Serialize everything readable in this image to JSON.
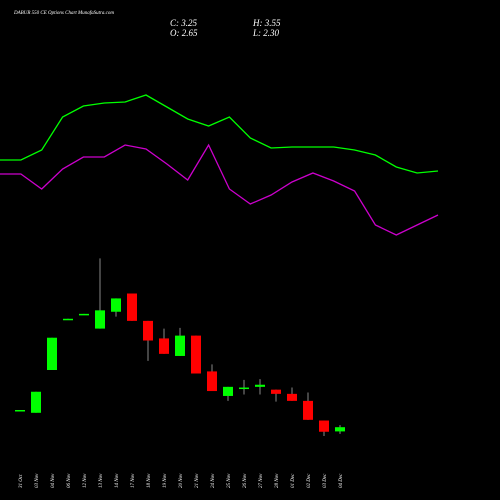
{
  "header": {
    "title": "DABUR 550 CE Options Chart MunafaSutra.com",
    "close": "C: 3.25",
    "high": "H: 3.55",
    "open": "O: 2.65",
    "low": "L: 2.30"
  },
  "chart_data": [
    {
      "type": "line",
      "series": [
        {
          "color": "#00ff00",
          "values": [
            90,
            90,
            100,
            133,
            144,
            147,
            148,
            155,
            143,
            131,
            124,
            133,
            112,
            102,
            103,
            103,
            103,
            100,
            95,
            83,
            77,
            79
          ]
        },
        {
          "color": "#cc00cc",
          "values": [
            76,
            76,
            61,
            81,
            93,
            93,
            105,
            101,
            86,
            70,
            105,
            61,
            46,
            55,
            68,
            77,
            69,
            59,
            25,
            15,
            25,
            35
          ]
        }
      ],
      "ylim": [
        0,
        200
      ]
    },
    {
      "type": "candlestick",
      "categories": [
        "31 Oct",
        "03 Nov",
        "04 Nov",
        "06 Nov",
        "12 Nov",
        "13 Nov",
        "14 Nov",
        "17 Nov",
        "18 Nov",
        "19 Nov",
        "20 Nov",
        "21 Nov",
        "24 Nov",
        "25 Nov",
        "26 Nov",
        "27 Nov",
        "28 Nov",
        "01 Dec",
        "02 Dec",
        "03 Dec",
        "04 Dec"
      ],
      "open": [
        5.6,
        5.3,
        11.4,
        18.6,
        19.3,
        17.3,
        19.7,
        22.3,
        18.4,
        15.9,
        13.4,
        16.3,
        11.2,
        7.7,
        8.7,
        9.0,
        8.6,
        8.0,
        7.0,
        4.2,
        2.65
      ],
      "high": [
        5.7,
        8.3,
        16.0,
        18.7,
        19.4,
        27.3,
        21.6,
        22.3,
        18.4,
        17.3,
        17.4,
        16.3,
        12.2,
        9.0,
        10.0,
        10.1,
        8.6,
        8.9,
        8.2,
        4.2,
        3.55
      ],
      "low": [
        5.6,
        5.3,
        11.4,
        18.6,
        19.3,
        17.3,
        19.0,
        18.4,
        12.7,
        13.7,
        13.4,
        10.9,
        8.4,
        7.0,
        7.9,
        7.9,
        6.9,
        7.0,
        4.3,
        2.0,
        2.3
      ],
      "close": [
        5.7,
        8.3,
        16.0,
        18.7,
        19.4,
        19.9,
        21.6,
        18.4,
        15.6,
        13.7,
        16.3,
        10.9,
        8.4,
        9.0,
        8.9,
        9.3,
        8.0,
        7.0,
        4.3,
        2.6,
        3.25
      ],
      "up_color": "#00ff00",
      "down_color": "#ff0000",
      "ylim": [
        0,
        28.5
      ]
    }
  ]
}
